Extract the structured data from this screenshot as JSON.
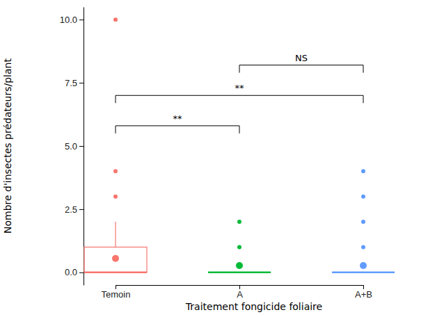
{
  "chart_data": {
    "type": "box",
    "x_label": "Traitement fongicide foliaire",
    "y_label": "Nombre d'insectes prédateurs/plant",
    "categories": [
      "Temoin",
      "A",
      "A+B"
    ],
    "colors": [
      "#F8766D",
      "#00BA38",
      "#619CFF"
    ],
    "boxes": [
      {
        "min": 0,
        "q1": 0,
        "median": 0,
        "q3": 1,
        "max": 2,
        "outliers": [
          3,
          4,
          10
        ],
        "mean": 0.55
      },
      {
        "min": 0,
        "q1": 0,
        "median": 0,
        "q3": 0,
        "max": 0,
        "outliers": [
          1,
          2
        ],
        "mean": 0.27
      },
      {
        "min": 0,
        "q1": 0,
        "median": 0,
        "q3": 0,
        "max": 0,
        "outliers": [
          1,
          2,
          3,
          4
        ],
        "mean": 0.27
      }
    ],
    "comparisons": [
      {
        "groups": [
          "A",
          "A+B"
        ],
        "label": "NS",
        "y": 8.2
      },
      {
        "groups": [
          "Temoin",
          "A+B"
        ],
        "label": "**",
        "y": 7.0
      },
      {
        "groups": [
          "Temoin",
          "A"
        ],
        "label": "**",
        "y": 5.8
      }
    ],
    "ylim": [
      -0.5,
      10.5
    ],
    "yticks": [
      {
        "value": 0,
        "label": "0.0"
      },
      {
        "value": 2.5,
        "label": "2.5"
      },
      {
        "value": 5,
        "label": "5.0"
      },
      {
        "value": 7.5,
        "label": "7.5"
      },
      {
        "value": 10,
        "label": "10.0"
      }
    ],
    "grid": false
  }
}
